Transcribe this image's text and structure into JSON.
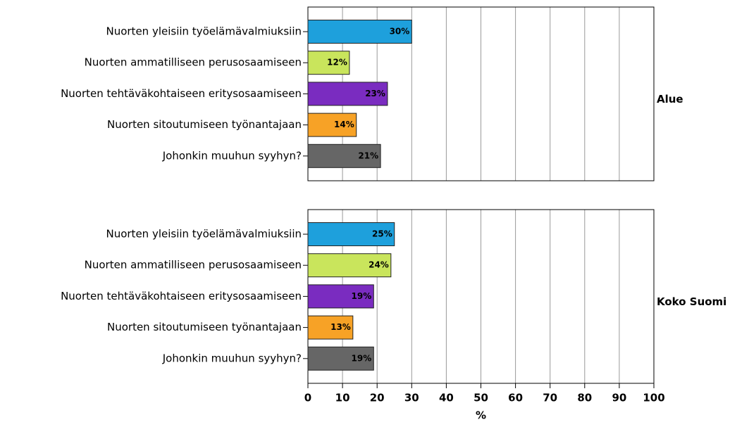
{
  "chart_data": [
    {
      "type": "bar",
      "panel_label": "Alue",
      "categories": [
        "Nuorten yleisiin työelämävalmiuksiin",
        "Nuorten ammatilliseen perusosaamiseen",
        "Nuorten tehtäväkohtaiseen eritysosaamiseen",
        "Nuorten sitoutumiseen työnantajaan",
        "Johonkin muuhun syyhyn?"
      ],
      "values": [
        30,
        12,
        23,
        14,
        21
      ],
      "value_labels": [
        "30%",
        "12%",
        "23%",
        "14%",
        "21%"
      ],
      "colors": [
        "#1ea0dc",
        "#c9e55c",
        "#7a2cc0",
        "#f7a226",
        "#666666"
      ],
      "xlim": [
        0,
        100
      ],
      "xticks": [
        0,
        10,
        20,
        30,
        40,
        50,
        60,
        70,
        80,
        90,
        100
      ],
      "grid": true
    },
    {
      "type": "bar",
      "panel_label": "Koko Suomi",
      "categories": [
        "Nuorten yleisiin työelämävalmiuksiin",
        "Nuorten ammatilliseen perusosaamiseen",
        "Nuorten tehtäväkohtaiseen eritysosaamiseen",
        "Nuorten sitoutumiseen työnantajaan",
        "Johonkin muuhun syyhyn?"
      ],
      "values": [
        25,
        24,
        19,
        13,
        19
      ],
      "value_labels": [
        "25%",
        "24%",
        "19%",
        "13%",
        "19%"
      ],
      "colors": [
        "#1ea0dc",
        "#c9e55c",
        "#7a2cc0",
        "#f7a226",
        "#666666"
      ],
      "xlim": [
        0,
        100
      ],
      "xticks": [
        0,
        10,
        20,
        30,
        40,
        50,
        60,
        70,
        80,
        90,
        100
      ],
      "grid": true,
      "xlabel": "%"
    }
  ]
}
